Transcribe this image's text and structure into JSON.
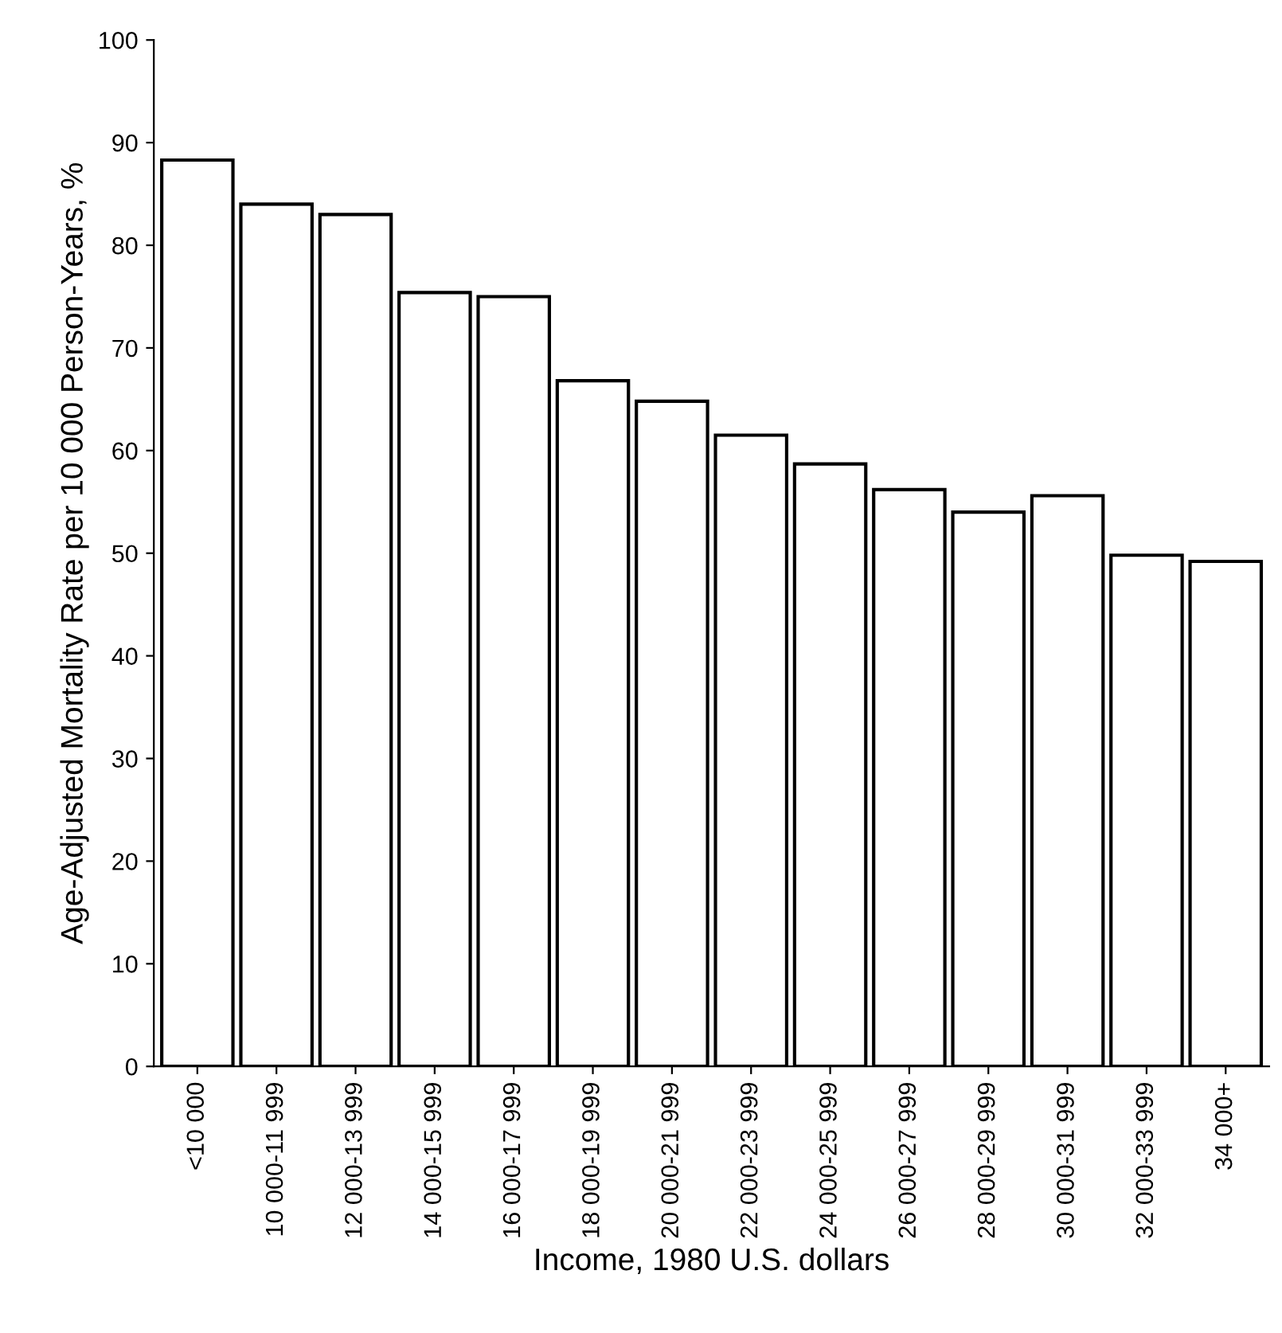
{
  "chart_data": {
    "type": "bar",
    "xlabel": "Income, 1980 U.S. dollars",
    "ylabel": "Age-Adjusted Mortality Rate per 10 000 Person-Years, %",
    "categories": [
      "<10 000",
      "10 000-11 999",
      "12 000-13 999",
      "14 000-15 999",
      "16 000-17 999",
      "18 000-19 999",
      "20 000-21 999",
      "22 000-23 999",
      "24 000-25 999",
      "26 000-27 999",
      "28 000-29 999",
      "30 000-31 999",
      "32 000-33 999",
      "34 000+"
    ],
    "values": [
      88.3,
      84,
      83,
      75.4,
      75,
      66.8,
      64.8,
      61.5,
      58.7,
      56.2,
      54,
      55.6,
      49.8,
      49.2
    ],
    "color": "#ffffff",
    "ylim": [
      0,
      100
    ],
    "yticks": [
      0,
      10,
      20,
      30,
      40,
      50,
      60,
      70,
      80,
      90,
      100
    ],
    "grid": false
  }
}
